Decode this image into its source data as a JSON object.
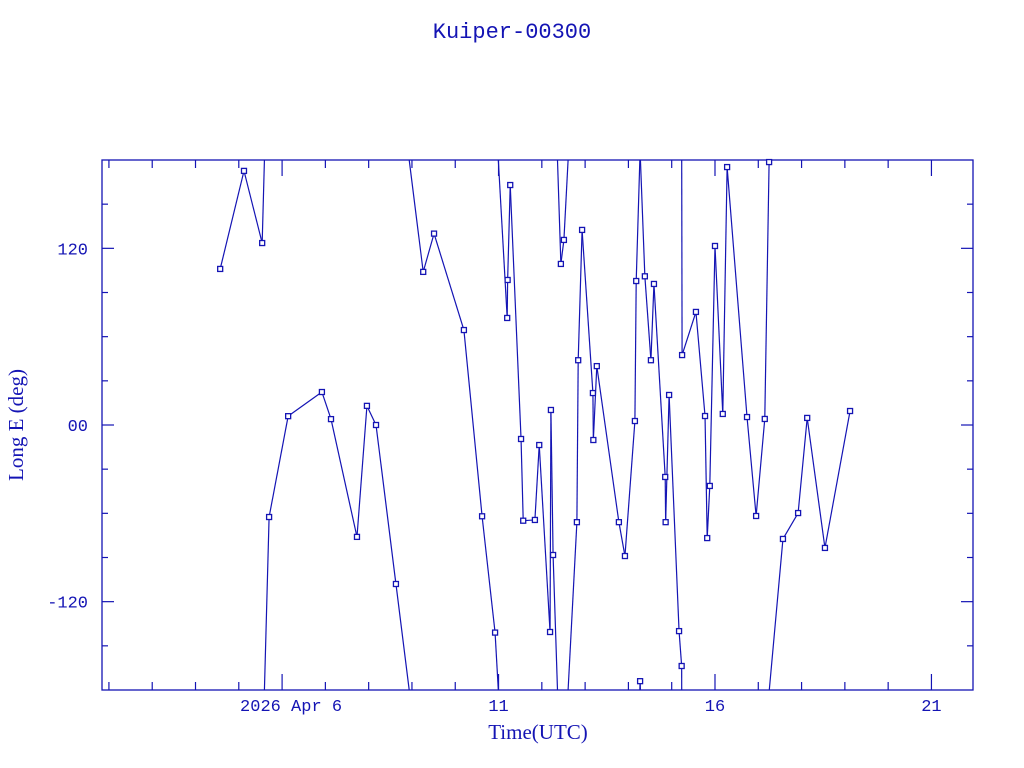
{
  "chart_data": {
    "type": "line",
    "title": "Kuiper-00300",
    "xlabel": "Time(UTC)",
    "ylabel": "Long E (deg)",
    "color": "#1414b4",
    "marker": "square",
    "grid": false,
    "legend": "none",
    "x_unit": "day of April 2026 (UTC)",
    "xlim": [
      1.84,
      21.96
    ],
    "ylim": [
      -180,
      180
    ],
    "x_major_ticks": [
      6,
      11,
      16,
      21
    ],
    "x_tick_labels": [
      "2026 Apr  6",
      "11",
      "16",
      "21"
    ],
    "x_minor_step": 1,
    "y_major_ticks": [
      -120,
      0,
      120
    ],
    "y_tick_labels": [
      "-120",
      "00",
      "120"
    ],
    "y_minor_step": 30,
    "wraps_at_limits": true,
    "x": [
      4.57,
      5.12,
      5.54,
      5.7,
      6.14,
      6.92,
      7.13,
      7.73,
      7.96,
      8.17,
      8.63,
      9.26,
      9.51,
      10.2,
      10.62,
      10.92,
      11.2,
      11.21,
      11.27,
      11.52,
      11.57,
      11.84,
      11.94,
      12.19,
      12.21,
      12.26,
      12.44,
      12.51,
      12.81,
      12.84,
      12.93,
      13.18,
      13.19,
      13.27,
      13.78,
      13.92,
      14.15,
      14.18,
      14.27,
      14.38,
      14.52,
      14.59,
      14.85,
      14.86,
      14.94,
      15.17,
      15.23,
      15.24,
      15.56,
      15.77,
      15.82,
      15.88,
      16.0,
      16.18,
      16.28,
      16.74,
      16.95,
      17.15,
      17.25,
      17.57,
      17.92,
      18.13,
      18.54,
      19.12
    ],
    "y": [
      106,
      172.6,
      123.6,
      -62.5,
      6,
      22.4,
      4,
      -76,
      13,
      0,
      -108,
      104,
      130,
      64.5,
      -62,
      -141,
      72.7,
      98.5,
      163,
      -9.5,
      -65,
      -64.5,
      -13.6,
      -140.6,
      10.2,
      -88.3,
      109.4,
      125.7,
      -66,
      44,
      132.5,
      21.7,
      -10.2,
      40,
      -66,
      -89,
      2.7,
      97.8,
      -174,
      101,
      44,
      95.8,
      -35.3,
      -66,
      20.4,
      -140,
      -163.7,
      47.5,
      76.8,
      6.1,
      -76.8,
      -41.4,
      121.6,
      7.5,
      175.2,
      5.4,
      -61.8,
      4.1,
      178.6,
      -77.4,
      -59.8,
      4.8,
      -83.5,
      9.5
    ]
  }
}
